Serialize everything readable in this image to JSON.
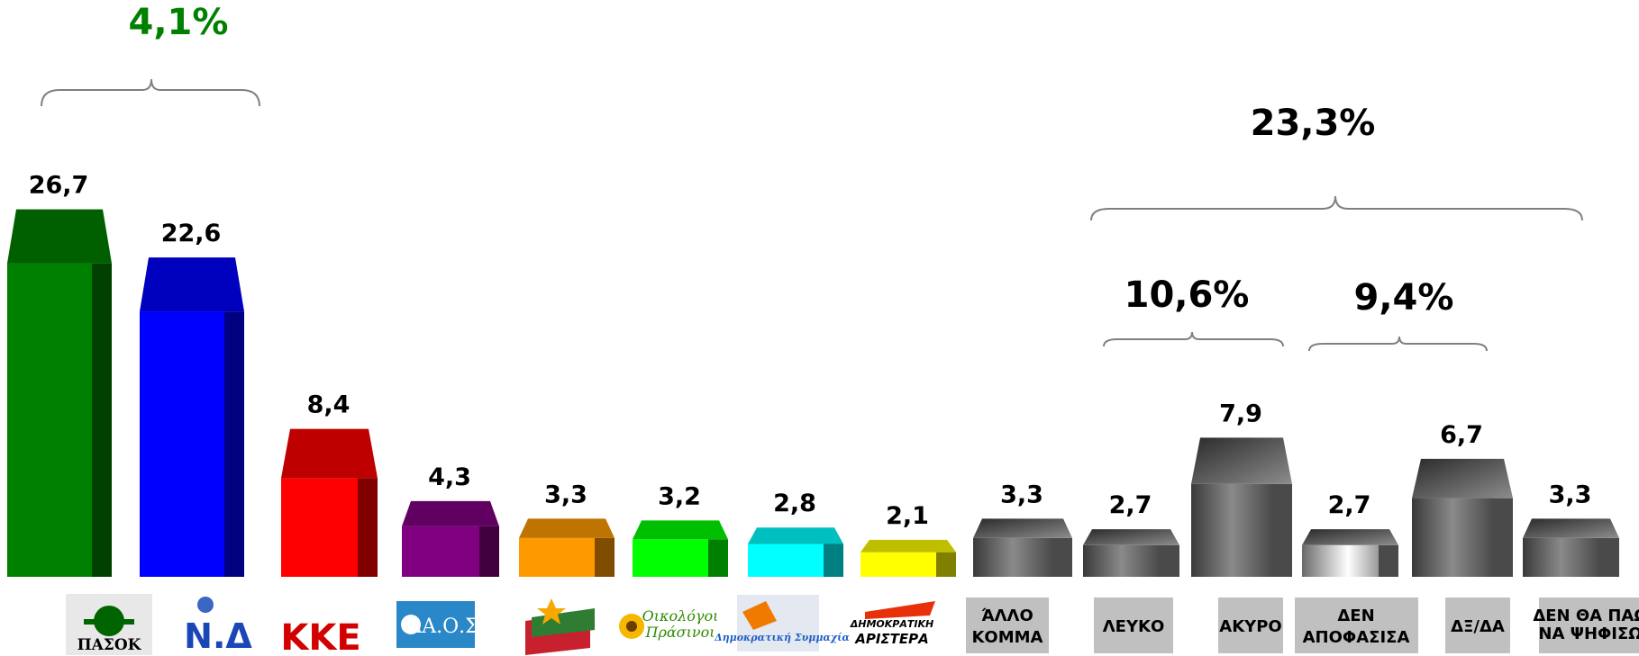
{
  "chart_data": {
    "type": "bar",
    "categories": [
      "ΠΑΣΟΚ",
      "ΝΔ",
      "ΚΚΕ",
      "ΛΑ.Ο.Σ",
      "ΣΥΡΙΖΑ",
      "Οικολόγοι Πράσινοι",
      "Δημοκρατική Συμμαχία",
      "ΔΗΜΟΚΡΑΤΙΚΗ ΑΡΙΣΤΕΡΑ",
      "ΆΛΛΟ ΚΟΜΜΑ",
      "ΛΕΥΚΟ",
      "ΑΚΥΡΟ",
      "ΔΕΝ ΑΠΟΦΑΣΙΣΑ",
      "ΔΞ/ΔΑ",
      "ΔΕΝ ΘΑ ΠΑΩ ΝΑ ΨΗΦΙΣΩ"
    ],
    "values": [
      26.7,
      22.6,
      8.4,
      4.3,
      3.3,
      3.2,
      2.8,
      2.1,
      3.3,
      2.7,
      7.9,
      2.7,
      6.7,
      3.3
    ],
    "value_labels": [
      "26,7",
      "22,6",
      "8,4",
      "4,3",
      "3,3",
      "3,2",
      "2,8",
      "2,1",
      "3,3",
      "2,7",
      "7,9",
      "2,7",
      "6,7",
      "3,3"
    ],
    "bar_colors": [
      "#008000",
      "#0000ff",
      "#ff0000",
      "#800080",
      "#ff9900",
      "#00ff00",
      "#00ffff",
      "#ffff00",
      "#808080",
      "#808080",
      "#808080",
      "#808080",
      "#808080",
      "#808080"
    ],
    "ylim": [
      0,
      30
    ],
    "grid": false,
    "legend": "none"
  },
  "logos": {
    "pasok": "ΠΑΣΟΚ",
    "nd": "Ν.Δ",
    "kke": "ΚΚΕ",
    "laos": "ΛΑ.Ο.Σ",
    "ecogreens_line1": "Οικολόγοι",
    "ecogreens_line2": "Πράσινοι",
    "dimsym": "Δημοκρατική Συμμαχία",
    "dimar_line1": "ΔΗΜΟΚΡΑΤΙΚΗ",
    "dimar_line2": "ΑΡΙΣΤΕΡΑ"
  },
  "gray_labels": {
    "allo": [
      "ΆΛΛΟ",
      "ΚΟΜΜΑ"
    ],
    "lefko": [
      "ΛΕΥΚΟ"
    ],
    "akyro": [
      "ΑΚΥΡΟ"
    ],
    "den_apofasisa": [
      "ΔΕΝ",
      "ΑΠΟΦΑΣΙΣΑ"
    ],
    "dxda": [
      "ΔΞ/ΔΑ"
    ],
    "den_tha": [
      "ΔΕΝ ΘΑ ΠΑΩ",
      "ΝΑ ΨΗΦΙΣΩ"
    ]
  },
  "annotations": {
    "difference": "4,1%",
    "difference_color": "#008000",
    "total_other": "23,3%",
    "blank_invalid": "10,6%",
    "undecided": "9,4%"
  }
}
